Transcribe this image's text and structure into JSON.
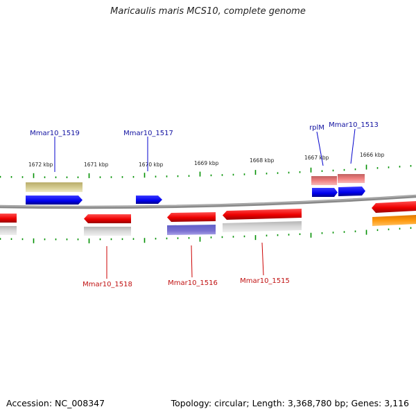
{
  "title": "Maricaulis maris MCS10, complete genome",
  "footer": {
    "accession": "Accession: NC_008347",
    "topology": "Topology: circular; Length: 3,368,780 bp; Genes: 3,116"
  },
  "scale_labels": [
    "1672 kbp",
    "1671 kbp",
    "1670 kbp",
    "1669 kbp",
    "1668 kbp",
    "1667 kbp",
    "1666 kbp"
  ],
  "genes_top": [
    {
      "name": "Mmar10_1519",
      "color": "#0000ff"
    },
    {
      "name": "Mmar10_1517",
      "color": "#0000ff"
    },
    {
      "name": "rplM",
      "color": "#0000ff"
    },
    {
      "name": "Mmar10_1513",
      "color": "#0000ff"
    }
  ],
  "genes_bottom": [
    {
      "name": "Mmar10_1518",
      "color": "#ff0000"
    },
    {
      "name": "Mmar10_1516",
      "color": "#ff0000"
    },
    {
      "name": "Mmar10_1515",
      "color": "#ff0000"
    }
  ],
  "colors": {
    "forward_cds": "#0000ff",
    "reverse_cds": "#ff0000",
    "backbone": "#808080",
    "tick": "#008000",
    "label_forward": "#0000a0",
    "label_reverse": "#c00000"
  }
}
